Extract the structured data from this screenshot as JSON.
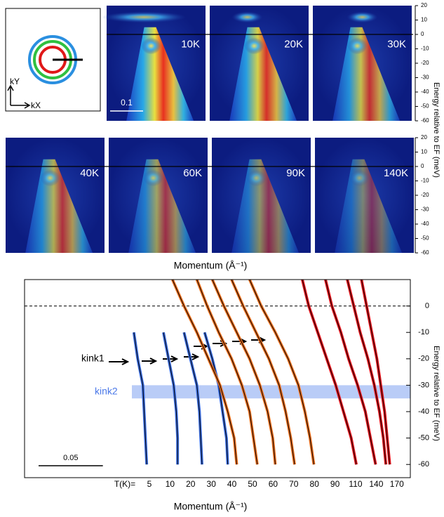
{
  "chart_data": [
    {
      "type": "image-grid",
      "panels": [
        "10K",
        "20K",
        "30K",
        "40K",
        "60K",
        "90K",
        "140K"
      ],
      "ylim": [
        -60,
        20
      ],
      "yticks": [
        20,
        10,
        0,
        -10,
        -20,
        -30,
        -40,
        -50,
        -60
      ],
      "xlim": [
        0,
        0.3
      ],
      "scale_bar": 0.1,
      "xlabel": "Momentum (Å⁻¹)",
      "ylabel": "Energy relative to EF (meV)",
      "inset": {
        "ky": "kY",
        "kx": "kX"
      }
    },
    {
      "type": "line",
      "xlim": [
        0,
        0.3
      ],
      "ylim": [
        -65,
        10
      ],
      "yticks": [
        0,
        -10,
        -20,
        -30,
        -40,
        -50,
        -60
      ],
      "xlabel": "Momentum (Å⁻¹)",
      "ylabel": "Energy relative to EF (meV)",
      "fermi_level": 0,
      "y": [
        10,
        0,
        -10,
        -20,
        -30,
        -40,
        -50,
        -60
      ],
      "series": [
        {
          "name": "5",
          "color": "#3d6fe2",
          "values": [
            null,
            null,
            0.085,
            0.088,
            0.092,
            0.093,
            0.094,
            0.095
          ]
        },
        {
          "name": "10",
          "color": "#3d6fe2",
          "values": [
            null,
            null,
            0.108,
            0.112,
            0.116,
            0.118,
            0.119,
            0.119
          ]
        },
        {
          "name": "20",
          "color": "#3d6fe2",
          "values": [
            null,
            null,
            0.124,
            0.129,
            0.134,
            0.136,
            0.137,
            0.138
          ]
        },
        {
          "name": "30",
          "color": "#3d6fe2",
          "values": [
            null,
            null,
            0.14,
            0.146,
            0.151,
            0.154,
            0.157,
            0.158
          ]
        },
        {
          "name": "40",
          "color": "#f0701e",
          "values": [
            0.115,
            0.124,
            0.134,
            0.143,
            0.152,
            0.158,
            0.163,
            0.165
          ]
        },
        {
          "name": "50",
          "color": "#f0701e",
          "values": [
            0.134,
            0.142,
            0.151,
            0.161,
            0.169,
            0.175,
            0.178,
            0.181
          ]
        },
        {
          "name": "60",
          "color": "#f0701e",
          "values": [
            0.146,
            0.155,
            0.165,
            0.175,
            0.183,
            0.189,
            0.193,
            0.195
          ]
        },
        {
          "name": "70",
          "color": "#f0701e",
          "values": [
            0.161,
            0.17,
            0.18,
            0.19,
            0.198,
            0.203,
            0.207,
            0.21
          ]
        },
        {
          "name": "80",
          "color": "#f0701e",
          "values": [
            0.175,
            0.184,
            0.195,
            0.205,
            0.213,
            0.218,
            0.222,
            0.225
          ]
        },
        {
          "name": "90",
          "color": "#e8141c",
          "values": [
            0.216,
            0.221,
            0.228,
            0.235,
            0.242,
            0.248,
            0.254,
            0.258
          ]
        },
        {
          "name": "110",
          "color": "#e8141c",
          "values": [
            0.234,
            0.239,
            0.246,
            0.252,
            0.259,
            0.265,
            0.269,
            0.273
          ]
        },
        {
          "name": "140",
          "color": "#e8141c",
          "values": [
            0.251,
            0.256,
            0.261,
            0.267,
            0.272,
            0.276,
            0.279,
            0.281
          ]
        },
        {
          "name": "170",
          "color": "#e8141c",
          "values": [
            0.262,
            0.266,
            0.27,
            0.274,
            0.277,
            0.28,
            0.282,
            0.284
          ]
        }
      ],
      "temperature_label": "T(K)=",
      "kink1": {
        "label": "kink1",
        "y": -20
      },
      "kink2": {
        "label": "kink2",
        "band": [
          -35,
          -30
        ]
      },
      "scale_bar": 0.05
    }
  ]
}
